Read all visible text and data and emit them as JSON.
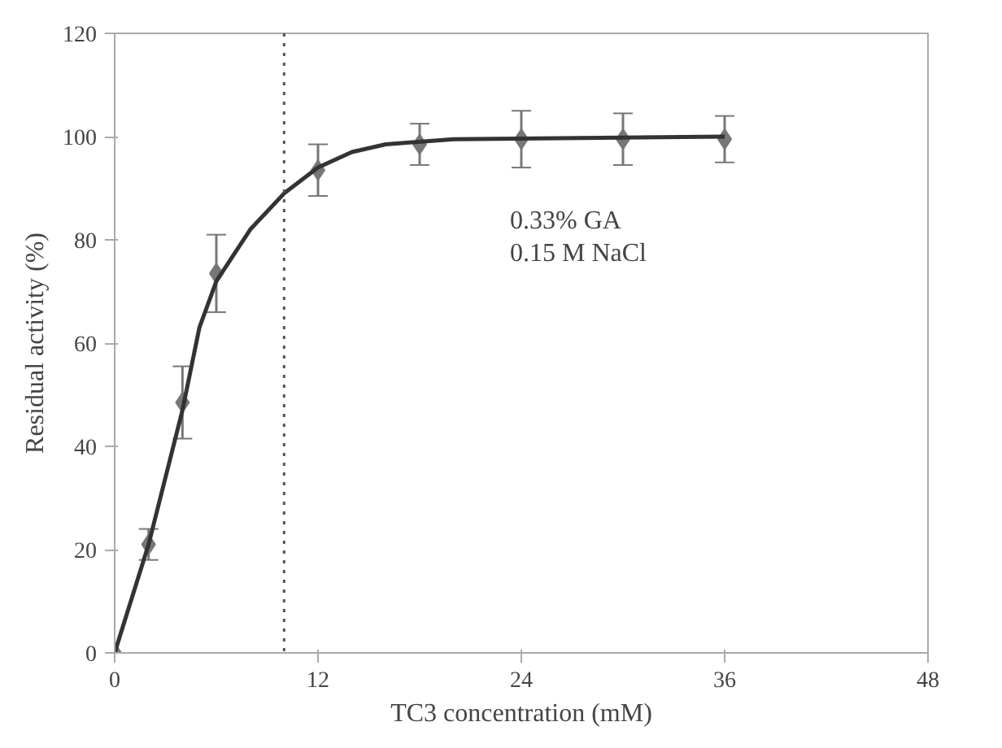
{
  "chart_data": {
    "type": "scatter",
    "xlabel": "TC3 concentration (mM)",
    "ylabel": "Residual activity (%)",
    "xlim": [
      0,
      48
    ],
    "xticks": [
      0,
      12,
      24,
      36,
      48
    ],
    "ylim": [
      0,
      120
    ],
    "yticks": [
      0,
      20,
      40,
      60,
      80,
      100,
      120
    ],
    "grid": false,
    "marker": "diamond",
    "annotations": [
      "0.33% GA",
      "0.15 M NaCl"
    ],
    "ref_lines": [
      {
        "axis": "x",
        "value": 10,
        "label": null,
        "color": "#555555",
        "line_style": "dotted"
      }
    ],
    "series": [
      {
        "color": "#777777",
        "x": [
          0,
          2,
          4,
          6,
          12,
          18,
          24,
          30,
          36
        ],
        "values": [
          0,
          21,
          48.5,
          73.5,
          93.5,
          98.5,
          99.5,
          99.5,
          99.5
        ],
        "errors": [
          null,
          3,
          7,
          7.5,
          5,
          4,
          5.5,
          5,
          4.5
        ]
      },
      {
        "type": "line",
        "color": "#333333",
        "line_style": "solid",
        "marker": "none",
        "x": [
          0,
          2,
          4,
          5,
          6,
          8,
          10,
          12,
          14,
          16,
          20,
          36
        ],
        "values": [
          0,
          21,
          47,
          63,
          72,
          82,
          89,
          94,
          97,
          98.5,
          99.5,
          100
        ]
      }
    ]
  }
}
